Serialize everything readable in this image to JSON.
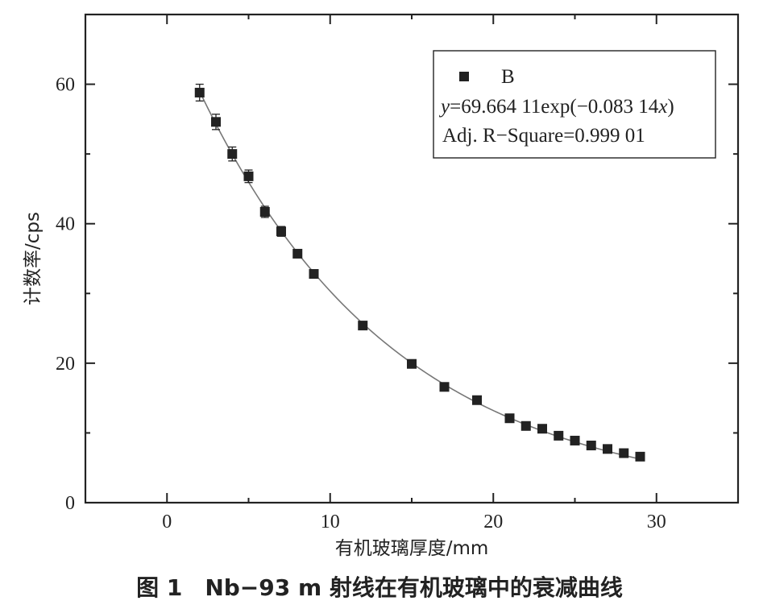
{
  "chart_data": {
    "type": "scatter",
    "xlabel": "有机玻璃厚度/mm",
    "ylabel": "计数率/cps",
    "xlim": [
      -5,
      35
    ],
    "ylim": [
      0,
      70
    ],
    "xticks": [
      0,
      10,
      20,
      30
    ],
    "yticks": [
      0,
      20,
      40,
      60
    ],
    "grid": false,
    "legend_position": "top-right",
    "series": [
      {
        "name": "B",
        "marker": "square",
        "color": "#222222",
        "x": [
          2,
          3,
          4,
          5,
          6,
          7,
          8,
          9,
          12,
          15,
          17,
          19,
          21,
          22,
          23,
          24,
          25,
          26,
          27,
          28,
          29
        ],
        "y": [
          58.8,
          54.6,
          50.0,
          46.8,
          41.7,
          38.9,
          35.7,
          32.8,
          25.4,
          19.9,
          16.6,
          14.7,
          12.1,
          11.0,
          10.6,
          9.6,
          8.9,
          8.2,
          7.7,
          7.1,
          6.6
        ],
        "error": [
          1.2,
          1.1,
          1.0,
          0.9,
          0.8,
          0.7,
          0.5,
          0.5,
          0.4,
          0.4,
          0.4,
          0.4,
          0.3,
          0.3,
          0.3,
          0.3,
          0.3,
          0.3,
          0.3,
          0.3,
          0.3
        ]
      }
    ],
    "fit": {
      "model": "exponential",
      "a": 69.66411,
      "k": -0.08314,
      "x_range": [
        2,
        29
      ],
      "equation_prefix": "y",
      "equation_body": "=69.664 11exp(−0.083 14",
      "equation_var": "x",
      "equation_suffix": ")",
      "r_square_text": "Adj. R−Square=0.999 01"
    }
  },
  "caption": "图 1　Nb−93 m 射线在有机玻璃中的衰减曲线"
}
